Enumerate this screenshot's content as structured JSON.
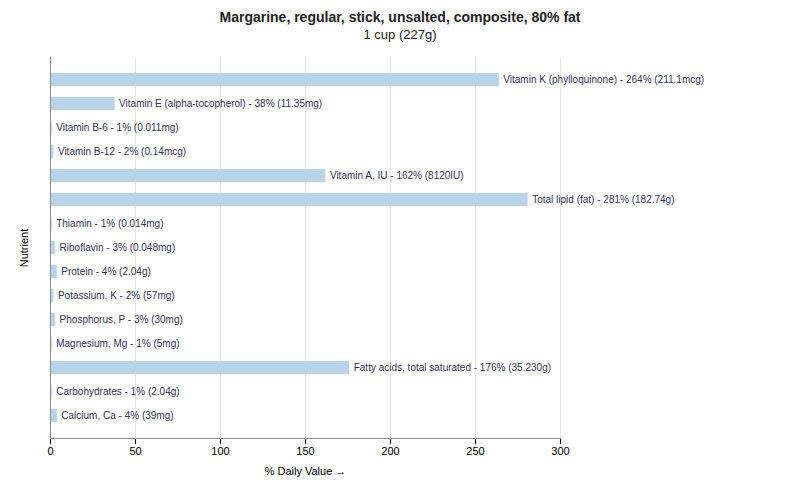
{
  "chart_data": {
    "type": "bar",
    "orientation": "horizontal",
    "title": "Margarine, regular, stick, unsalted, composite, 80% fat",
    "subtitle": "1 cup (227g)",
    "xlabel": "% Daily Value",
    "ylabel": "Nutrient",
    "categories": [
      "Calcium, Ca - 4% (39mg)",
      "Carbohydrates - 1% (2.04g)",
      "Fatty acids, total saturated - 176% (35.230g)",
      "Magnesium, Mg - 1% (5mg)",
      "Phosphorus, P - 3% (30mg)",
      "Potassium, K - 2% (57mg)",
      "Protein - 4% (2.04g)",
      "Riboflavin - 3% (0.048mg)",
      "Thiamin - 1% (0.014mg)",
      "Total lipid (fat) - 281% (182.74g)",
      "Vitamin A, IU - 162% (8120IU)",
      "Vitamin B-12 - 2% (0.14mcg)",
      "Vitamin B-6 - 1% (0.011mg)",
      "Vitamin E (alpha-tocopherol) - 38% (11.35mg)",
      "Vitamin K (phylloquinone) - 264% (211.1mcg)"
    ],
    "values": [
      4,
      1,
      176,
      1,
      3,
      2,
      4,
      3,
      1,
      281,
      162,
      2,
      1,
      38,
      264
    ],
    "color": "#b8d4ea",
    "xlim": [
      0,
      300
    ],
    "xticks": [
      0,
      50,
      100,
      150,
      200,
      250,
      300
    ],
    "grid": true,
    "tick_labels": "x"
  }
}
